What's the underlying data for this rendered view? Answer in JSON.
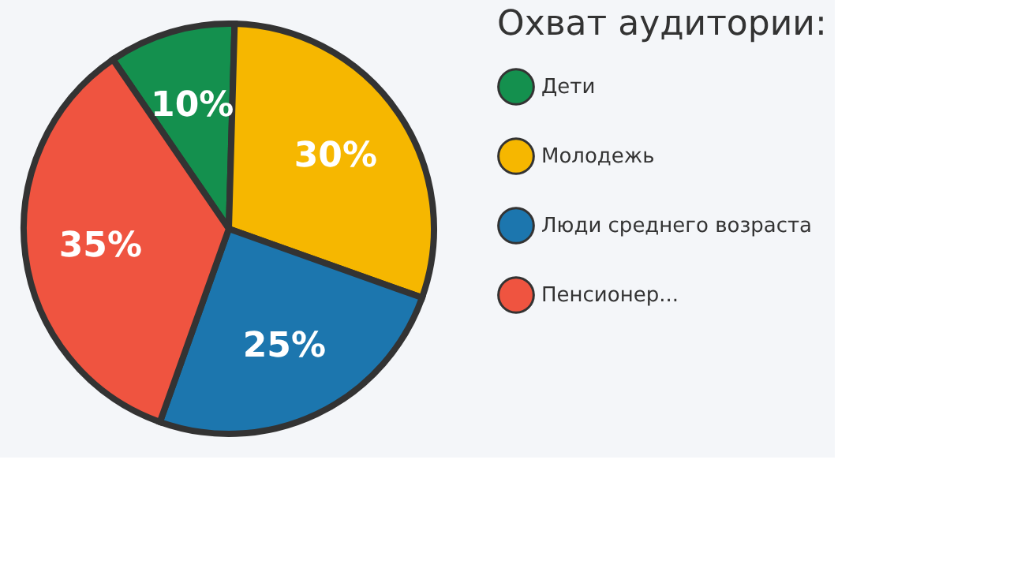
{
  "chart_data": {
    "type": "pie",
    "legend_title": "Охват аудитории:",
    "categories": [
      "Дети",
      "Молодежь",
      "Люди среднего возраста",
      "Пенсионер..."
    ],
    "values": [
      10,
      30,
      25,
      35
    ],
    "colors": [
      "#14904e",
      "#f6b700",
      "#1c76ae",
      "#ef5440"
    ],
    "value_labels": [
      "10%",
      "30%",
      "25%",
      "35%"
    ],
    "legend": "right"
  }
}
